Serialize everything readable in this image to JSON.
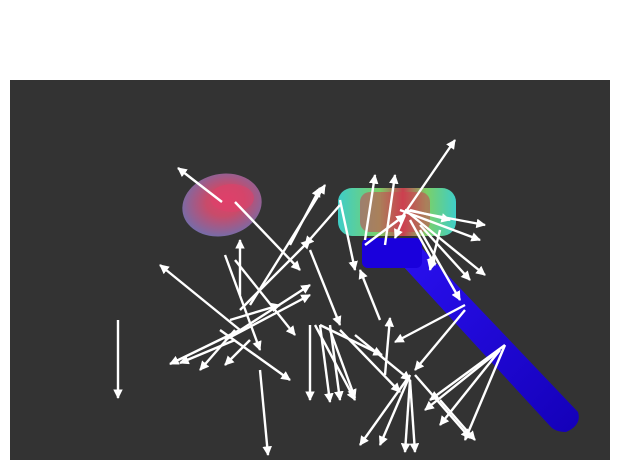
{
  "viewport": {
    "background": "#333333",
    "arrow_color": "#ffffff"
  },
  "objects": [
    {
      "name": "rounded-blob",
      "colors": [
        "#6f6fae",
        "#c84b6a",
        "#e0406a"
      ]
    },
    {
      "name": "hammer-handle",
      "color": "#1a00dc"
    },
    {
      "name": "hammer-head",
      "colors": [
        "#3fd6d0",
        "#7fd86a",
        "#d04050"
      ]
    }
  ],
  "vector_field": {
    "description_shown": false
  }
}
